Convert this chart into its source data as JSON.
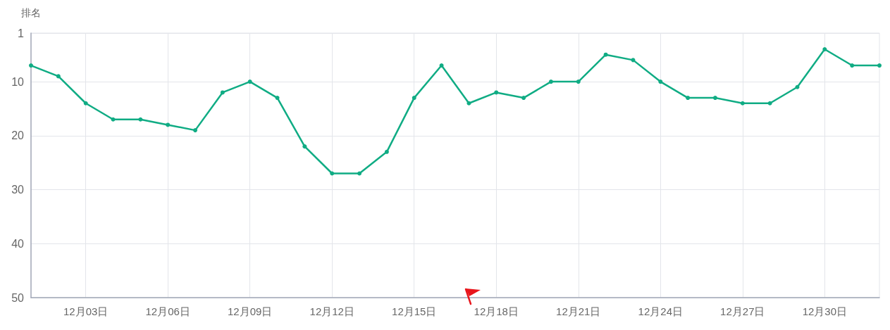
{
  "chart_data": {
    "type": "line",
    "ylabel": "排名",
    "categories": [
      null,
      null,
      "12月03日",
      null,
      null,
      "12月06日",
      null,
      null,
      "12月09日",
      null,
      null,
      "12月12日",
      null,
      null,
      "12月15日",
      null,
      null,
      "12月18日",
      null,
      null,
      "12月21日",
      null,
      null,
      "12月24日",
      null,
      null,
      "12月27日",
      null,
      null,
      "12月30日",
      null,
      null
    ],
    "values": [
      7,
      9,
      14,
      17,
      17,
      18,
      19,
      12,
      10,
      13,
      22,
      27,
      27,
      23,
      13,
      7,
      14,
      12,
      13,
      10,
      10,
      5,
      6,
      10,
      13,
      13,
      14,
      14,
      11,
      4,
      7,
      7
    ],
    "color": "#10ac84",
    "ylim": [
      50,
      1
    ],
    "yticks": [
      1,
      10,
      20,
      30,
      40,
      50
    ],
    "grid": true,
    "marker": "circle",
    "line_style": "solid"
  }
}
